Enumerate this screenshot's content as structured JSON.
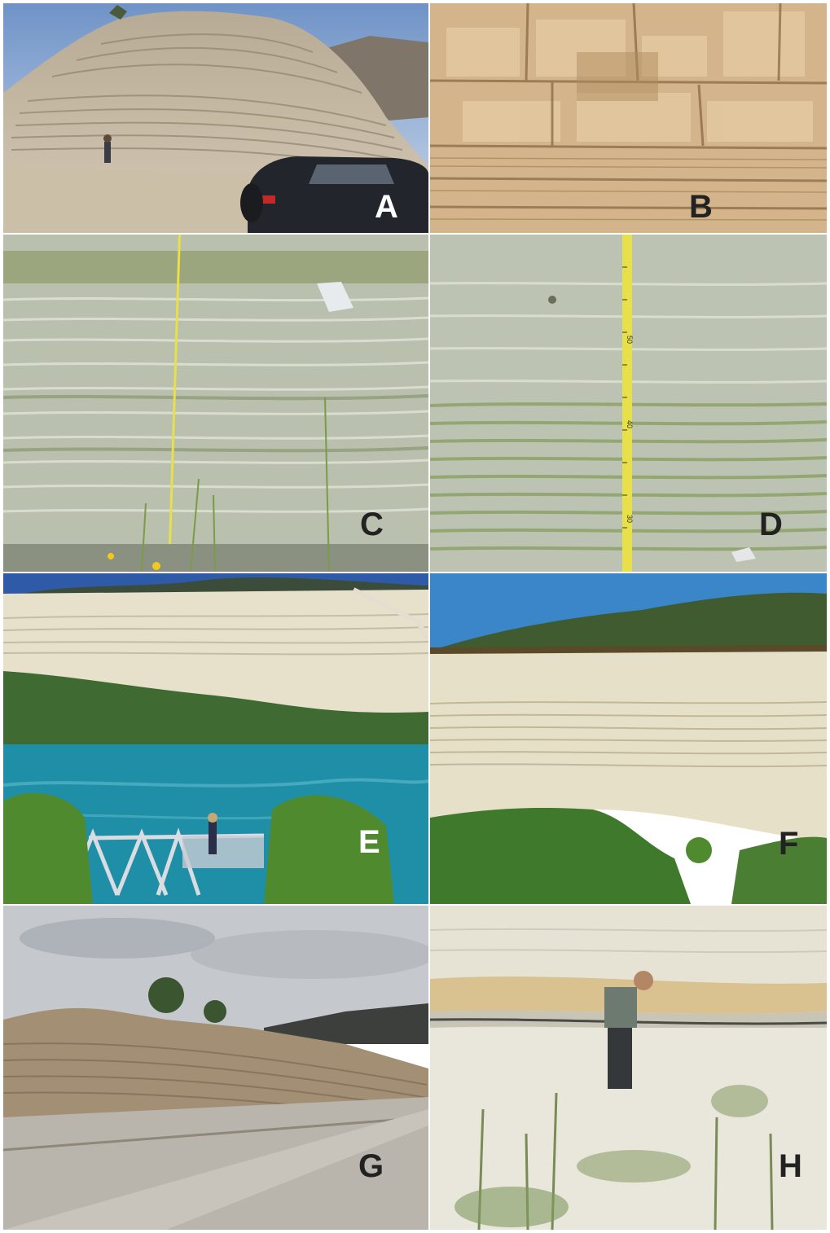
{
  "panels": [
    {
      "id": "A",
      "label": "A",
      "scene": "eroded layered sediment outcrop with a dark car and a person"
    },
    {
      "id": "B",
      "label": "B",
      "scene": "close-up of blocky tan laminated rock face"
    },
    {
      "id": "C",
      "label": "C",
      "scene": "finely laminated grey-green sediment with yellow measuring tape"
    },
    {
      "id": "D",
      "label": "D",
      "scene": "laminated sediment with yellow measuring tape marked 30 to 50"
    },
    {
      "id": "E",
      "label": "E",
      "scene": "pale layered cliff above turquoise river, person on wooden footbridge"
    },
    {
      "id": "F",
      "label": "F",
      "scene": "tall pale layered cliff under wooded hills"
    },
    {
      "id": "G",
      "label": "G",
      "scene": "gravel road beside layered road-cut under cloudy sky"
    },
    {
      "id": "H",
      "label": "H",
      "scene": "person measuring pale laminated sediment bank"
    }
  ],
  "tape_marks": [
    "30",
    "40",
    "50"
  ],
  "colors": {
    "tape": "#e8e04a",
    "river": "#1f8fa8",
    "sediment_pale": "#e6e0cf",
    "sediment_tan": "#d9b98a",
    "label_light": "#ffffff",
    "label_dark": "#222222"
  }
}
